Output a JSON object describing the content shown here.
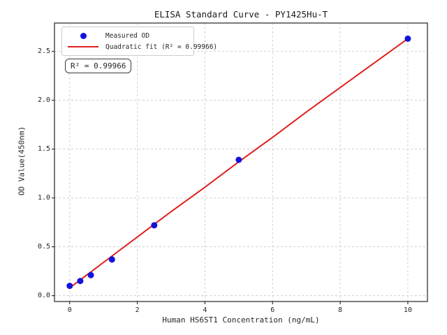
{
  "chart_data": {
    "type": "scatter",
    "title": "ELISA Standard Curve - PY1425Hu-T",
    "xlabel": "Human HS6ST1 Concentration (ng/mL)",
    "ylabel": "OD Value(450nm)",
    "xlim": [
      -0.45,
      10.58
    ],
    "ylim": [
      -0.06,
      2.79
    ],
    "x_ticks": [
      0,
      2,
      4,
      6,
      8,
      10
    ],
    "x_tick_labels": [
      "0",
      "2",
      "4",
      "6",
      "8",
      "10"
    ],
    "y_ticks": [
      0.0,
      0.5,
      1.0,
      1.5,
      2.0,
      2.5
    ],
    "y_tick_labels": [
      "0.0",
      "0.5",
      "1.0",
      "1.5",
      "2.0",
      "2.5"
    ],
    "grid": true,
    "legend_position": "upper-left",
    "series": [
      {
        "name": "Measured OD",
        "type": "scatter",
        "color": "#1212dd",
        "x": [
          0,
          0.3125,
          0.625,
          1.25,
          2.5,
          5,
          10
        ],
        "y": [
          0.1,
          0.15,
          0.21,
          0.37,
          0.72,
          1.39,
          2.63
        ]
      },
      {
        "name": "Quadratic fit (R² = 0.99966)",
        "type": "line",
        "color": "#e01f1f",
        "x": [
          0,
          1,
          2,
          3,
          4,
          5,
          6,
          7,
          8,
          9,
          10
        ],
        "y": [
          0.08,
          0.34,
          0.6,
          0.86,
          1.11,
          1.37,
          1.62,
          1.88,
          2.13,
          2.38,
          2.63
        ]
      }
    ],
    "annotation": "R² = 0.99966",
    "r_squared": "0.99966"
  },
  "legend": {
    "items": [
      {
        "label": "Measured OD",
        "marker": "dot",
        "color": "#1212dd"
      },
      {
        "label": "Quadratic fit (R² = 0.99966)",
        "marker": "line",
        "color": "#e01f1f"
      }
    ]
  },
  "annotation_box": {
    "text": "R² = 0.99966"
  },
  "style": {
    "grid_color": "#cfcfcf",
    "spine_color": "#333333",
    "background": "#ffffff"
  }
}
